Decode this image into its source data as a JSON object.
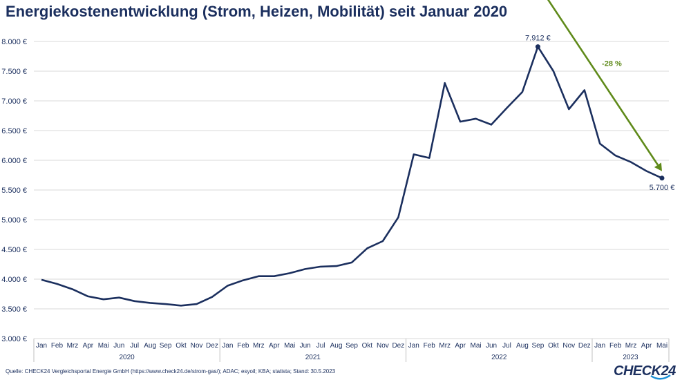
{
  "chart_data": {
    "type": "line",
    "title": "Energiekostenentwicklung (Strom, Heizen, Mobilität) seit Januar 2020",
    "ylim": [
      3000,
      8000
    ],
    "yticks": [
      {
        "value": 3000,
        "label": "3.000 €"
      },
      {
        "value": 3500,
        "label": "3.500 €"
      },
      {
        "value": 4000,
        "label": "4.000 €"
      },
      {
        "value": 4500,
        "label": "4.500 €"
      },
      {
        "value": 5000,
        "label": "5.000 €"
      },
      {
        "value": 5500,
        "label": "5.500 €"
      },
      {
        "value": 6000,
        "label": "6.000 €"
      },
      {
        "value": 6500,
        "label": "6.500 €"
      },
      {
        "value": 7000,
        "label": "7.000 €"
      },
      {
        "value": 7500,
        "label": "7.500 €"
      },
      {
        "value": 8000,
        "label": "8.000 €"
      }
    ],
    "grid": true,
    "categories": [
      "Jan",
      "Feb",
      "Mrz",
      "Apr",
      "Mai",
      "Jun",
      "Jul",
      "Aug",
      "Sep",
      "Okt",
      "Nov",
      "Dez",
      "Jan",
      "Feb",
      "Mrz",
      "Apr",
      "Mai",
      "Jun",
      "Jul",
      "Aug",
      "Sep",
      "Okt",
      "Nov",
      "Dez",
      "Jan",
      "Feb",
      "Mrz",
      "Apr",
      "Mai",
      "Jun",
      "Jul",
      "Aug",
      "Sep",
      "Okt",
      "Nov",
      "Dez",
      "Jan",
      "Feb",
      "Mrz",
      "Apr",
      "Mai"
    ],
    "years": [
      {
        "label": "2020",
        "months": 12
      },
      {
        "label": "2021",
        "months": 12
      },
      {
        "label": "2022",
        "months": 12
      },
      {
        "label": "2023",
        "months": 5
      }
    ],
    "series": [
      {
        "values": [
          3990,
          3920,
          3830,
          3710,
          3660,
          3690,
          3630,
          3600,
          3580,
          3555,
          3580,
          3700,
          3890,
          3980,
          4050,
          4050,
          4100,
          4170,
          4210,
          4220,
          4280,
          4520,
          4640,
          5040,
          6100,
          6040,
          7300,
          6650,
          6700,
          6600,
          6880,
          7150,
          7912,
          7500,
          6860,
          7180,
          6280,
          6080,
          5970,
          5820,
          5700
        ],
        "color": "#1b2f5e"
      }
    ],
    "annotations": [
      {
        "label": "7.912 €",
        "index": 32
      },
      {
        "label": "5.700 €",
        "index": 40
      }
    ],
    "trend": {
      "label": "-28 %",
      "from_index": 33,
      "to_index": 40,
      "color": "#5f8a1a"
    }
  },
  "footer": {
    "source": "Quelle: CHECK24 Vergleichsportal Energie GmbH (https://www.check24.de/strom-gas/); ADAC; esyoil; KBA; statista; Stand: 30.5.2023",
    "logo": "CHECK24"
  }
}
